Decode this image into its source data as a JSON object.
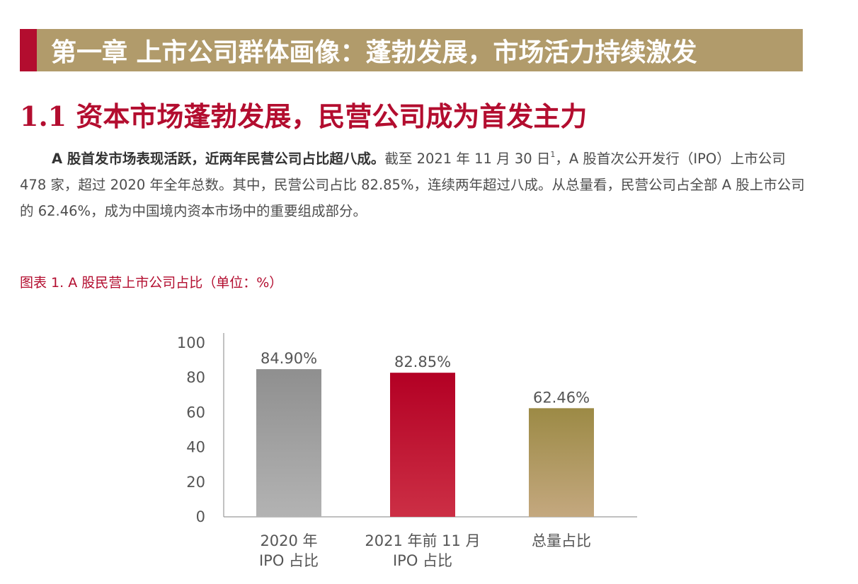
{
  "chapter": {
    "title": "第一章  上市公司群体画像：蓬勃发展，市场活力持续激发"
  },
  "section": {
    "heading": "1.1  资本市场蓬勃发展，民营公司成为首发主力"
  },
  "paragraph": {
    "lead": "A 股首发市场表现活跃，近两年民营公司占比超八成。",
    "text_before_footnote": "截至 2021 年 11 月 30 日",
    "footnote": "1",
    "text_after_footnote": "，A 股首次公开发行（IPO）上市公司 478 家，超过 2020 年全年总数。其中，民营公司占比 82.85%，连续两年超过八成。从总量看，民营公司占全部 A 股上市公司的 62.46%，成为中国境内资本市场中的重要组成部分。"
  },
  "figure": {
    "caption": "图表 1. A 股民营上市公司占比（单位：%）"
  },
  "colors": {
    "brand_red": "#b30d2f",
    "banner_gold": "#b19b6b"
  },
  "chart_data": {
    "type": "bar",
    "title": "图表 1. A 股民营上市公司占比（单位：%）",
    "categories": [
      [
        "2020 年",
        "IPO 占比"
      ],
      [
        "2021 年前 11 月",
        "IPO 占比"
      ],
      [
        "总量占比"
      ]
    ],
    "values": [
      84.9,
      82.85,
      62.46
    ],
    "value_labels": [
      "84.90%",
      "82.85%",
      "62.46%"
    ],
    "bar_colors": [
      [
        "#8f8f8f",
        "#b3b3b3"
      ],
      [
        "#b30024",
        "#cc2f45"
      ],
      [
        "#9c8a45",
        "#c4a87f"
      ]
    ],
    "ylim": [
      0,
      100
    ],
    "yticks": [
      "0",
      "20",
      "40",
      "60",
      "80",
      "100"
    ],
    "grid": false,
    "legend": "none"
  }
}
